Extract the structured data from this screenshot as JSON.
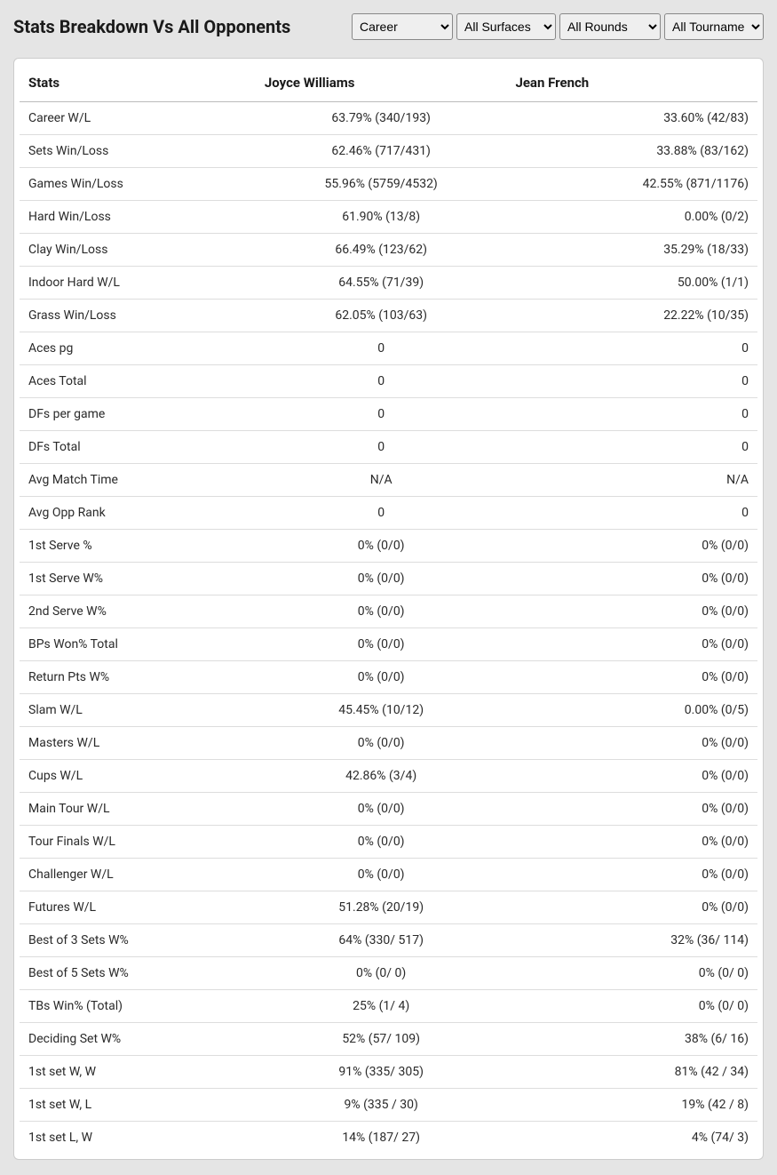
{
  "title": "Stats Breakdown Vs All Opponents",
  "filters": {
    "career": {
      "selected": "Career",
      "options": [
        "Career"
      ]
    },
    "surface": {
      "selected": "All Surfaces",
      "options": [
        "All Surfaces"
      ]
    },
    "rounds": {
      "selected": "All Rounds",
      "options": [
        "All Rounds"
      ]
    },
    "tournament": {
      "selected": "All Tournaments",
      "options": [
        "All Tournaments"
      ]
    }
  },
  "table": {
    "columns": [
      "Stats",
      "Joyce Williams",
      "Jean French"
    ],
    "rows": [
      [
        "Career W/L",
        "63.79% (340/193)",
        "33.60% (42/83)"
      ],
      [
        "Sets Win/Loss",
        "62.46% (717/431)",
        "33.88% (83/162)"
      ],
      [
        "Games Win/Loss",
        "55.96% (5759/4532)",
        "42.55% (871/1176)"
      ],
      [
        "Hard Win/Loss",
        "61.90% (13/8)",
        "0.00% (0/2)"
      ],
      [
        "Clay Win/Loss",
        "66.49% (123/62)",
        "35.29% (18/33)"
      ],
      [
        "Indoor Hard W/L",
        "64.55% (71/39)",
        "50.00% (1/1)"
      ],
      [
        "Grass Win/Loss",
        "62.05% (103/63)",
        "22.22% (10/35)"
      ],
      [
        "Aces pg",
        "0",
        "0"
      ],
      [
        "Aces Total",
        "0",
        "0"
      ],
      [
        "DFs per game",
        "0",
        "0"
      ],
      [
        "DFs Total",
        "0",
        "0"
      ],
      [
        "Avg Match Time",
        "N/A",
        "N/A"
      ],
      [
        "Avg Opp Rank",
        "0",
        "0"
      ],
      [
        "1st Serve %",
        "0% (0/0)",
        "0% (0/0)"
      ],
      [
        "1st Serve W%",
        "0% (0/0)",
        "0% (0/0)"
      ],
      [
        "2nd Serve W%",
        "0% (0/0)",
        "0% (0/0)"
      ],
      [
        "BPs Won% Total",
        "0% (0/0)",
        "0% (0/0)"
      ],
      [
        "Return Pts W%",
        "0% (0/0)",
        "0% (0/0)"
      ],
      [
        "Slam W/L",
        "45.45% (10/12)",
        "0.00% (0/5)"
      ],
      [
        "Masters W/L",
        "0% (0/0)",
        "0% (0/0)"
      ],
      [
        "Cups W/L",
        "42.86% (3/4)",
        "0% (0/0)"
      ],
      [
        "Main Tour W/L",
        "0% (0/0)",
        "0% (0/0)"
      ],
      [
        "Tour Finals W/L",
        "0% (0/0)",
        "0% (0/0)"
      ],
      [
        "Challenger W/L",
        "0% (0/0)",
        "0% (0/0)"
      ],
      [
        "Futures W/L",
        "51.28% (20/19)",
        "0% (0/0)"
      ],
      [
        "Best of 3 Sets W%",
        "64% (330/ 517)",
        "32% (36/ 114)"
      ],
      [
        "Best of 5 Sets W%",
        "0% (0/ 0)",
        "0% (0/ 0)"
      ],
      [
        "TBs Win% (Total)",
        "25% (1/ 4)",
        "0% (0/ 0)"
      ],
      [
        "Deciding Set W%",
        "52% (57/ 109)",
        "38% (6/ 16)"
      ],
      [
        "1st set W, W",
        "91% (335/ 305)",
        "81% (42 / 34)"
      ],
      [
        "1st set W, L",
        "9% (335 / 30)",
        "19% (42 / 8)"
      ],
      [
        "1st set L, W",
        "14% (187/ 27)",
        "4% (74/ 3)"
      ]
    ]
  },
  "style": {
    "background_color": "#e5e5e5",
    "table_background": "#ffffff",
    "header_border": "#bbbbbb",
    "row_border": "#dddddd",
    "text_color": "#1a1a1a",
    "body_text_color": "#2a2a2a",
    "title_fontsize": 20,
    "header_fontsize": 15,
    "cell_fontsize": 14
  }
}
